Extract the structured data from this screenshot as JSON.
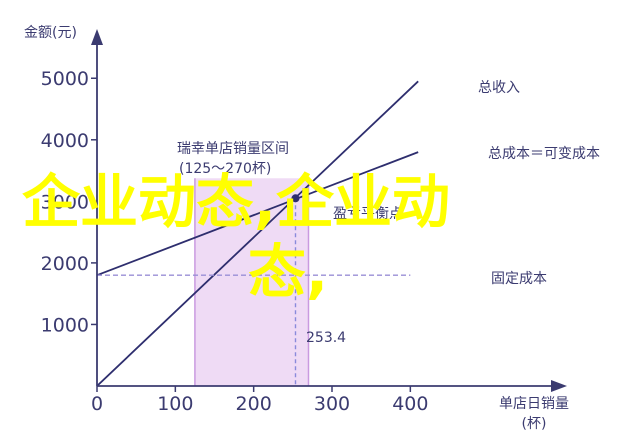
{
  "chart_data": {
    "type": "line",
    "xlabel_line1": "单店日销量",
    "xlabel_line2": "(杯)",
    "ylabel": "金额(元)",
    "xlim": [
      0,
      600
    ],
    "ylim": [
      0,
      5800
    ],
    "x_ticks": [
      0,
      100,
      200,
      300,
      400
    ],
    "y_ticks": [
      1000,
      2000,
      3000,
      4000,
      5000
    ],
    "series": [
      {
        "name": "总收入",
        "x": [
          0,
          410
        ],
        "y": [
          0,
          4950
        ]
      },
      {
        "name": "总成本＝可变成本",
        "x": [
          0,
          410
        ],
        "y": [
          1800,
          3800
        ]
      },
      {
        "name": "固定成本",
        "x": [
          0,
          400
        ],
        "y": [
          1800,
          1800
        ]
      }
    ],
    "break_even": {
      "x": 253.4,
      "y": 3050,
      "value_label": "253.4",
      "label": "盈亏平衡点"
    },
    "optimal_range": {
      "x_start": 125,
      "x_end": 270,
      "title_line1": "瑞幸单店销量区间",
      "title_line2": "(125～270杯)"
    },
    "colors": {
      "axis": "#3b3b70",
      "line": "#2e2e6e",
      "fixed": "#9a8fd6",
      "region": "#ecd5f3",
      "region_edge": "#c99ae0",
      "marker": "#8a8adb"
    }
  },
  "watermark": {
    "line1": "企业动态,企业动",
    "line2": "态,"
  }
}
